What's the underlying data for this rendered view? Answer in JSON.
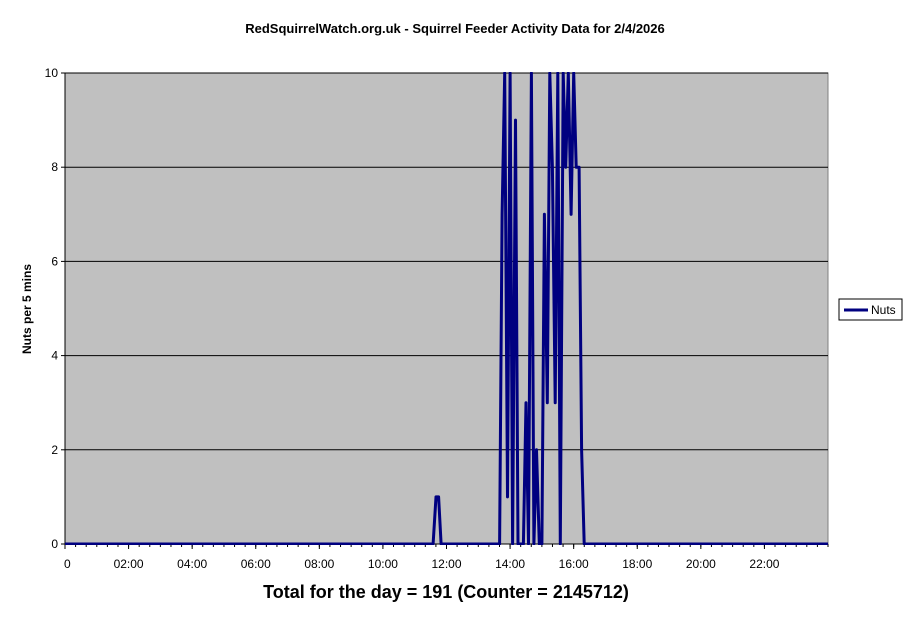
{
  "chart_data": {
    "type": "line",
    "title": "RedSquirrelWatch.org.uk - Squirrel Feeder Activity Data for 2/4/2026",
    "xlabel": "",
    "ylabel": "Nuts per 5 mins",
    "footer": "Total for the day = 191  (Counter = 2145712)",
    "x_unit": "hours",
    "xlim": [
      0,
      24
    ],
    "ylim": [
      0,
      10
    ],
    "x_ticks": [
      {
        "value": 0,
        "label": "0"
      },
      {
        "value": 2,
        "label": "02:00"
      },
      {
        "value": 4,
        "label": "04:00"
      },
      {
        "value": 6,
        "label": "06:00"
      },
      {
        "value": 8,
        "label": "08:00"
      },
      {
        "value": 10,
        "label": "10:00"
      },
      {
        "value": 12,
        "label": "12:00"
      },
      {
        "value": 14,
        "label": "14:00"
      },
      {
        "value": 16,
        "label": "16:00"
      },
      {
        "value": 18,
        "label": "18:00"
      },
      {
        "value": 20,
        "label": "20:00"
      },
      {
        "value": 22,
        "label": "22:00"
      }
    ],
    "y_ticks": [
      {
        "value": 0,
        "label": "0"
      },
      {
        "value": 2,
        "label": "2"
      },
      {
        "value": 4,
        "label": "4"
      },
      {
        "value": 6,
        "label": "6"
      },
      {
        "value": 8,
        "label": "8"
      },
      {
        "value": 10,
        "label": "10"
      }
    ],
    "grid": true,
    "legend": {
      "position": "right"
    },
    "colors": {
      "plot_background": "#c0c0c0",
      "series": "#000080",
      "gridline": "#000000"
    },
    "series": [
      {
        "name": "Nuts",
        "x": [
          0,
          11.58,
          11.67,
          11.75,
          11.83,
          11.92,
          12.0,
          13.67,
          13.75,
          13.83,
          13.92,
          14.0,
          14.08,
          14.17,
          14.25,
          14.33,
          14.42,
          14.5,
          14.58,
          14.67,
          14.75,
          14.83,
          14.92,
          15.0,
          15.08,
          15.17,
          15.25,
          15.33,
          15.42,
          15.5,
          15.58,
          15.67,
          15.75,
          15.83,
          15.92,
          16.0,
          16.08,
          16.17,
          16.25,
          16.33,
          16.42,
          16.5,
          24.0
        ],
        "y": [
          0,
          0,
          1,
          1,
          0,
          0,
          0,
          0,
          7,
          10,
          1,
          10,
          0,
          9,
          0,
          0,
          0,
          3,
          0,
          10,
          0,
          2,
          0,
          0,
          7,
          3,
          10,
          8,
          3,
          10,
          0,
          10,
          8,
          10,
          7,
          10,
          8,
          8,
          2,
          0,
          0,
          0,
          0
        ]
      }
    ]
  }
}
